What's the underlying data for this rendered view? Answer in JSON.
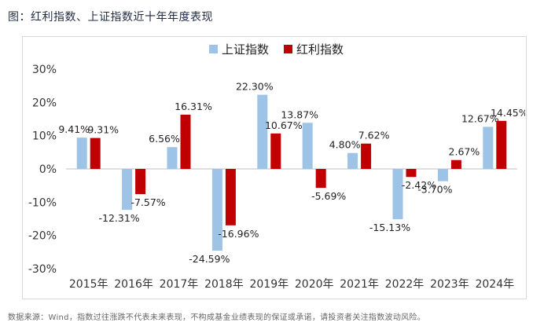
{
  "figure": {
    "title": "图：红利指数、上证指数近十年年度表现",
    "footer": "数据来源：Wind，指数过往涨跌不代表未来表现，不构成基金业绩表现的保证或承诺，请投资者关注指数波动风险。"
  },
  "chart_data": {
    "type": "bar",
    "title": "",
    "xlabel": "",
    "ylabel": "",
    "categories": [
      "2015年",
      "2016年",
      "2017年",
      "2018年",
      "2019年",
      "2020年",
      "2021年",
      "2022年",
      "2023年",
      "2024年"
    ],
    "series": [
      {
        "name": "上证指数",
        "color": "#9dc3e6",
        "values": [
          9.41,
          -12.31,
          6.56,
          -24.59,
          22.3,
          13.87,
          4.8,
          -15.13,
          -3.7,
          12.67
        ],
        "labels": [
          "9.41%",
          "-12.31%",
          "6.56%",
          "-24.59%",
          "22.30%",
          "13.87%",
          "4.80%",
          "-15.13%",
          "-3.70%",
          "12.67%"
        ]
      },
      {
        "name": "红利指数",
        "color": "#c00000",
        "values": [
          9.31,
          -7.57,
          16.31,
          -16.96,
          10.67,
          -5.69,
          7.62,
          -2.42,
          2.67,
          14.45
        ],
        "labels": [
          "9.31%",
          "-7.57%",
          "16.31%",
          "-16.96%",
          "10.67%",
          "-5.69%",
          "7.62%",
          "-2.42%",
          "2.67%",
          "14.45%"
        ]
      }
    ],
    "ylim": [
      -30,
      30
    ],
    "yticks": [
      30,
      20,
      10,
      0,
      -10,
      -20,
      -30
    ],
    "ytick_labels": [
      "30%",
      "20%",
      "10%",
      "0%",
      "-10%",
      "-20%",
      "-30%"
    ],
    "legend_position": "top-center",
    "grid": false
  }
}
